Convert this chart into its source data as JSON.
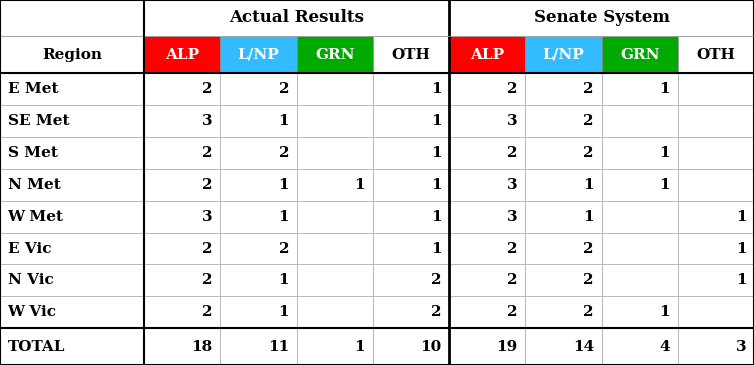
{
  "title_left": "Actual Results",
  "title_right": "Senate System",
  "col_headers": [
    "Region",
    "ALP",
    "L/NP",
    "GRN",
    "OTH",
    "ALP",
    "L/NP",
    "GRN",
    "OTH"
  ],
  "header_colors": [
    "#ffffff",
    "#ff0000",
    "#33bbff",
    "#00aa00",
    "#ffffff",
    "#ff0000",
    "#33bbff",
    "#00aa00",
    "#ffffff"
  ],
  "header_text_colors": [
    "#000000",
    "#000000",
    "#000000",
    "#000000",
    "#000000",
    "#000000",
    "#000000",
    "#000000",
    "#000000"
  ],
  "rows": [
    [
      "E Met",
      "2",
      "2",
      "",
      "1",
      "2",
      "2",
      "1",
      ""
    ],
    [
      "SE Met",
      "3",
      "1",
      "",
      "1",
      "3",
      "2",
      "",
      ""
    ],
    [
      "S Met",
      "2",
      "2",
      "",
      "1",
      "2",
      "2",
      "1",
      ""
    ],
    [
      "N Met",
      "2",
      "1",
      "1",
      "1",
      "3",
      "1",
      "1",
      ""
    ],
    [
      "W Met",
      "3",
      "1",
      "",
      "1",
      "3",
      "1",
      "",
      "1"
    ],
    [
      "E Vic",
      "2",
      "2",
      "",
      "1",
      "2",
      "2",
      "",
      "1"
    ],
    [
      "N Vic",
      "2",
      "1",
      "",
      "2",
      "2",
      "2",
      "",
      "1"
    ],
    [
      "W Vic",
      "2",
      "1",
      "",
      "2",
      "2",
      "2",
      "1",
      ""
    ]
  ],
  "total_row": [
    "TOTAL",
    "18",
    "11",
    "1",
    "10",
    "19",
    "14",
    "4",
    "3"
  ],
  "bg_color": "#ffffff",
  "row_bg": "#ffffff",
  "grid_color": "#aaaaaa",
  "col_widths": [
    1.55,
    0.82,
    0.82,
    0.82,
    0.82,
    0.82,
    0.82,
    0.82,
    0.82
  ],
  "header_fontsize": 11,
  "cell_fontsize": 11,
  "title_fontsize": 12
}
